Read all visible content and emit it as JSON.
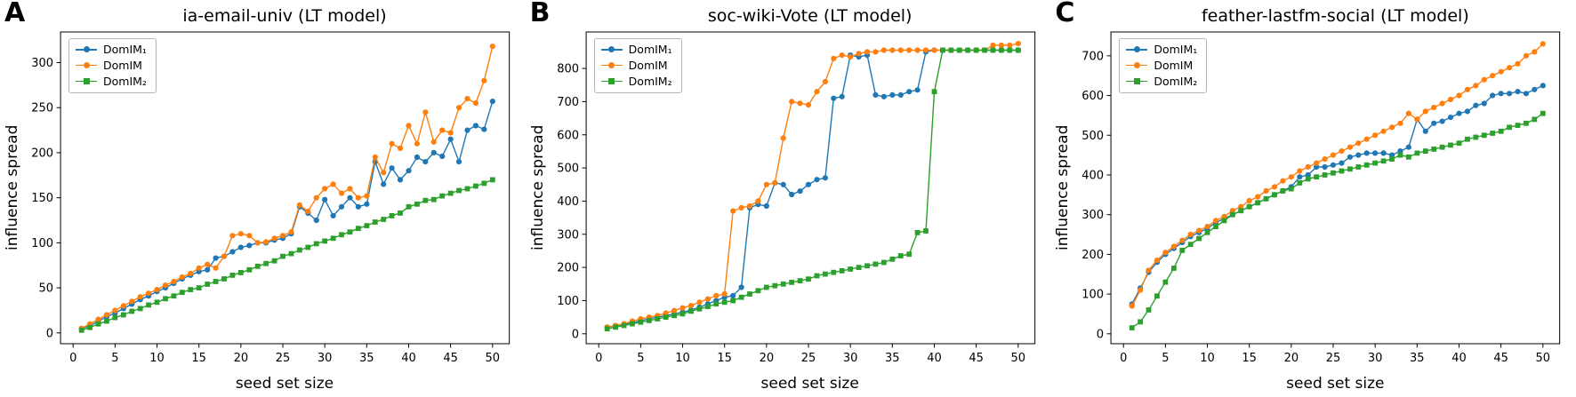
{
  "figure": {
    "xlabel": "seed set size",
    "ylabel": "influence spread"
  },
  "chart_data": [
    {
      "type": "line",
      "panel_letter": "A",
      "title": "ia-email-univ (LT model)",
      "xlabel": "seed set size",
      "ylabel": "influence spread",
      "legend_position": "upper left",
      "grid": false,
      "xlim": [
        -1.5,
        52
      ],
      "ylim": [
        -12,
        334
      ],
      "xticks": [
        0,
        5,
        10,
        15,
        20,
        25,
        30,
        35,
        40,
        45,
        50
      ],
      "yticks": [
        0,
        50,
        100,
        150,
        200,
        250,
        300
      ],
      "x": [
        1,
        2,
        3,
        4,
        5,
        6,
        7,
        8,
        9,
        10,
        11,
        12,
        13,
        14,
        15,
        16,
        17,
        18,
        19,
        20,
        21,
        22,
        23,
        24,
        25,
        26,
        27,
        28,
        29,
        30,
        31,
        32,
        33,
        34,
        35,
        36,
        37,
        38,
        39,
        40,
        41,
        42,
        43,
        44,
        45,
        46,
        47,
        48,
        49,
        50
      ],
      "series": [
        {
          "name": "domim1",
          "label": "DomIM₁",
          "color": "#1f77b4",
          "marker": "circle",
          "values": [
            5,
            8,
            13,
            18,
            22,
            27,
            32,
            37,
            41,
            46,
            50,
            55,
            60,
            64,
            68,
            70,
            83,
            85,
            90,
            95,
            97,
            100,
            100,
            103,
            105,
            110,
            140,
            133,
            125,
            148,
            130,
            140,
            150,
            140,
            143,
            190,
            165,
            183,
            170,
            180,
            195,
            190,
            200,
            196,
            215,
            190,
            225,
            230,
            226,
            257
          ]
        },
        {
          "name": "domim",
          "label": "DomIM",
          "color": "#ff7f0e",
          "marker": "circle",
          "values": [
            5,
            10,
            15,
            20,
            25,
            30,
            35,
            40,
            44,
            48,
            53,
            57,
            62,
            66,
            72,
            76,
            72,
            85,
            108,
            110,
            108,
            100,
            101,
            105,
            108,
            112,
            142,
            135,
            150,
            160,
            165,
            155,
            160,
            150,
            152,
            195,
            178,
            210,
            205,
            230,
            210,
            245,
            212,
            225,
            222,
            250,
            260,
            255,
            280,
            318
          ]
        },
        {
          "name": "domim2",
          "label": "DomIM₂",
          "color": "#2ca02c",
          "marker": "square",
          "values": [
            3,
            6,
            10,
            13,
            17,
            20,
            24,
            27,
            31,
            34,
            38,
            41,
            45,
            48,
            50,
            54,
            57,
            60,
            64,
            67,
            70,
            74,
            77,
            80,
            85,
            88,
            92,
            95,
            99,
            102,
            105,
            109,
            112,
            116,
            119,
            123,
            126,
            130,
            133,
            140,
            143,
            147,
            148,
            152,
            155,
            158,
            160,
            163,
            166,
            170
          ]
        }
      ]
    },
    {
      "type": "line",
      "panel_letter": "B",
      "title": "soc-wiki-Vote (LT model)",
      "xlabel": "seed set size",
      "ylabel": "influence spread",
      "legend_position": "upper left",
      "grid": false,
      "xlim": [
        -1.5,
        52
      ],
      "ylim": [
        -30,
        910
      ],
      "xticks": [
        0,
        5,
        10,
        15,
        20,
        25,
        30,
        35,
        40,
        45,
        50
      ],
      "yticks": [
        0,
        100,
        200,
        300,
        400,
        500,
        600,
        700,
        800
      ],
      "x": [
        1,
        2,
        3,
        4,
        5,
        6,
        7,
        8,
        9,
        10,
        11,
        12,
        13,
        14,
        15,
        16,
        17,
        18,
        19,
        20,
        21,
        22,
        23,
        24,
        25,
        26,
        27,
        28,
        29,
        30,
        31,
        32,
        33,
        34,
        35,
        36,
        37,
        38,
        39,
        40,
        41,
        42,
        43,
        44,
        45,
        46,
        47,
        48,
        49,
        50
      ],
      "series": [
        {
          "name": "domim1",
          "label": "DomIM₁",
          "color": "#1f77b4",
          "marker": "circle",
          "values": [
            20,
            24,
            28,
            33,
            40,
            45,
            50,
            55,
            60,
            65,
            72,
            80,
            90,
            100,
            110,
            115,
            140,
            380,
            390,
            385,
            455,
            450,
            420,
            430,
            450,
            465,
            470,
            710,
            715,
            840,
            835,
            840,
            720,
            715,
            720,
            720,
            730,
            735,
            850,
            855,
            855,
            855,
            855,
            855,
            855,
            855,
            855,
            855,
            855,
            855
          ]
        },
        {
          "name": "domim",
          "label": "DomIM",
          "color": "#ff7f0e",
          "marker": "circle",
          "values": [
            20,
            25,
            30,
            38,
            45,
            50,
            55,
            62,
            70,
            78,
            85,
            95,
            105,
            115,
            120,
            370,
            380,
            385,
            400,
            450,
            455,
            590,
            700,
            695,
            690,
            730,
            760,
            830,
            840,
            835,
            845,
            850,
            850,
            855,
            855,
            855,
            855,
            855,
            855,
            855,
            855,
            855,
            855,
            855,
            855,
            855,
            870,
            870,
            870,
            875
          ]
        },
        {
          "name": "domim2",
          "label": "DomIM₂",
          "color": "#2ca02c",
          "marker": "square",
          "values": [
            15,
            20,
            25,
            30,
            35,
            40,
            45,
            50,
            55,
            60,
            68,
            75,
            82,
            90,
            95,
            100,
            110,
            120,
            130,
            140,
            145,
            150,
            155,
            160,
            165,
            175,
            180,
            185,
            190,
            195,
            200,
            205,
            210,
            215,
            225,
            235,
            240,
            305,
            310,
            730,
            855,
            855,
            855,
            855,
            855,
            855,
            855,
            855,
            855,
            855
          ]
        }
      ]
    },
    {
      "type": "line",
      "panel_letter": "C",
      "title": "feather-lastfm-social (LT model)",
      "xlabel": "seed set size",
      "ylabel": "influence spread",
      "legend_position": "upper left",
      "grid": false,
      "xlim": [
        -1.5,
        52
      ],
      "ylim": [
        -25,
        760
      ],
      "xticks": [
        0,
        5,
        10,
        15,
        20,
        25,
        30,
        35,
        40,
        45,
        50
      ],
      "yticks": [
        0,
        100,
        200,
        300,
        400,
        500,
        600,
        700
      ],
      "x": [
        1,
        2,
        3,
        4,
        5,
        6,
        7,
        8,
        9,
        10,
        11,
        12,
        13,
        14,
        15,
        16,
        17,
        18,
        19,
        20,
        21,
        22,
        23,
        24,
        25,
        26,
        27,
        28,
        29,
        30,
        31,
        32,
        33,
        34,
        35,
        36,
        37,
        38,
        39,
        40,
        41,
        42,
        43,
        44,
        45,
        46,
        47,
        48,
        49,
        50
      ],
      "series": [
        {
          "name": "domim1",
          "label": "DomIM₁",
          "color": "#1f77b4",
          "marker": "circle",
          "values": [
            75,
            115,
            155,
            180,
            200,
            215,
            230,
            245,
            255,
            265,
            280,
            290,
            300,
            310,
            320,
            330,
            340,
            350,
            360,
            370,
            395,
            400,
            420,
            420,
            425,
            430,
            445,
            450,
            455,
            455,
            455,
            450,
            460,
            470,
            540,
            510,
            530,
            535,
            545,
            555,
            560,
            575,
            580,
            600,
            605,
            605,
            610,
            605,
            615,
            625
          ]
        },
        {
          "name": "domim",
          "label": "DomIM",
          "color": "#ff7f0e",
          "marker": "circle",
          "values": [
            70,
            110,
            160,
            185,
            205,
            220,
            235,
            250,
            260,
            270,
            285,
            295,
            310,
            320,
            335,
            345,
            360,
            370,
            385,
            395,
            410,
            420,
            430,
            440,
            450,
            460,
            470,
            480,
            490,
            500,
            510,
            520,
            530,
            555,
            540,
            560,
            570,
            580,
            590,
            600,
            615,
            625,
            640,
            650,
            660,
            670,
            680,
            700,
            710,
            730
          ]
        },
        {
          "name": "domim2",
          "label": "DomIM₂",
          "color": "#2ca02c",
          "marker": "square",
          "values": [
            15,
            30,
            60,
            95,
            130,
            165,
            210,
            225,
            240,
            255,
            270,
            285,
            300,
            310,
            320,
            330,
            340,
            350,
            360,
            365,
            380,
            390,
            395,
            400,
            405,
            410,
            415,
            420,
            425,
            430,
            435,
            440,
            450,
            445,
            455,
            460,
            465,
            470,
            475,
            480,
            490,
            495,
            500,
            505,
            510,
            520,
            525,
            530,
            540,
            555
          ]
        }
      ]
    }
  ]
}
